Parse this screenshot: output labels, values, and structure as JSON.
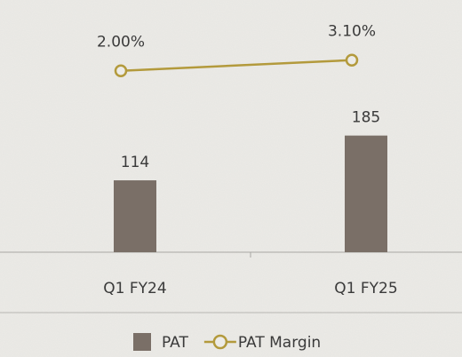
{
  "chart_data": {
    "type": "combo",
    "categories": [
      "Q1 FY24",
      "Q1 FY25"
    ],
    "series": [
      {
        "name": "PAT",
        "type": "bar",
        "color": "#7a6f67",
        "values": [
          114,
          185
        ]
      },
      {
        "name": "PAT Margin",
        "type": "line",
        "color": "#b39a3c",
        "axis": "y2",
        "values": [
          2.0,
          3.1
        ],
        "value_labels": [
          "2.00%",
          "3.10%"
        ]
      }
    ],
    "ylim": [
      0,
      400
    ],
    "y2lim": [
      -16.7,
      9.3
    ]
  }
}
